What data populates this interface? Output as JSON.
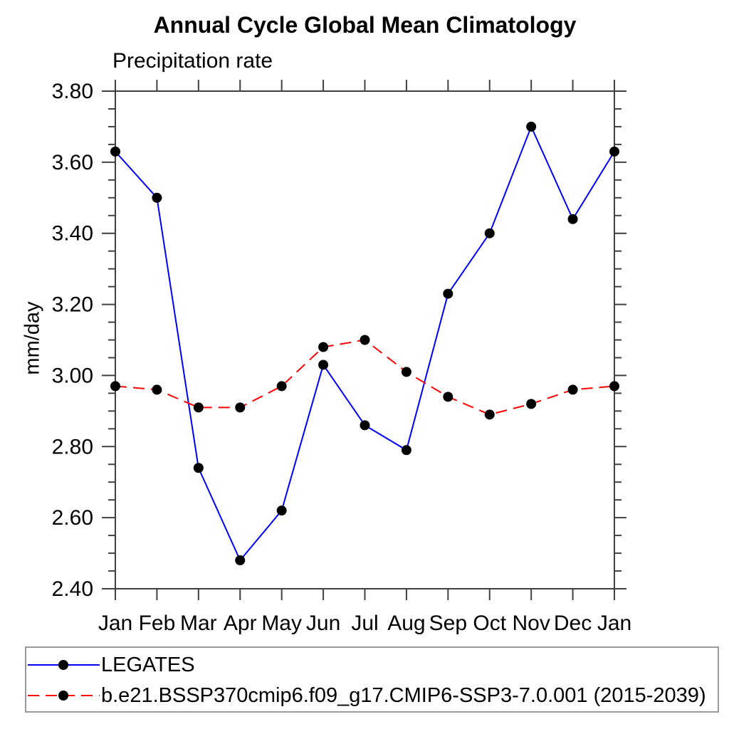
{
  "chart_data": {
    "type": "line",
    "title": "Annual Cycle Global Mean Climatology",
    "subtitle": "Precipitation rate",
    "ylabel": "mm/day",
    "categories": [
      "Jan",
      "Feb",
      "Mar",
      "Apr",
      "May",
      "Jun",
      "Jul",
      "Aug",
      "Sep",
      "Oct",
      "Nov",
      "Dec",
      "Jan"
    ],
    "y_axis": {
      "min": 2.4,
      "max": 3.8,
      "major_step": 0.2,
      "minor_step": 0.05,
      "tick_labels": [
        "2.40",
        "2.60",
        "2.80",
        "3.00",
        "3.20",
        "3.40",
        "3.60",
        "3.80"
      ]
    },
    "grid": false,
    "legend_position": "bottom-left-box",
    "series": [
      {
        "id": "legates",
        "name": "LEGATES",
        "color": "#0000ff",
        "line_style": "solid",
        "marker": "filled-circle",
        "marker_color": "#000000",
        "values": [
          3.63,
          3.5,
          2.74,
          2.48,
          2.62,
          3.03,
          2.86,
          2.79,
          3.23,
          3.4,
          3.7,
          3.44,
          3.63
        ]
      },
      {
        "id": "model",
        "name": "b.e21.BSSP370cmip6.f09_g17.CMIP6-SSP3-7.0.001 (2015-2039)",
        "color": "#ff0000",
        "line_style": "dashed",
        "marker": "filled-circle",
        "marker_color": "#000000",
        "values": [
          2.97,
          2.96,
          2.91,
          2.91,
          2.97,
          3.08,
          3.1,
          3.01,
          2.94,
          2.89,
          2.92,
          2.96,
          2.97
        ]
      }
    ]
  },
  "colors": {
    "axis": "#404040",
    "text": "#000000",
    "background": "#ffffff",
    "legend_border": "#999999"
  }
}
